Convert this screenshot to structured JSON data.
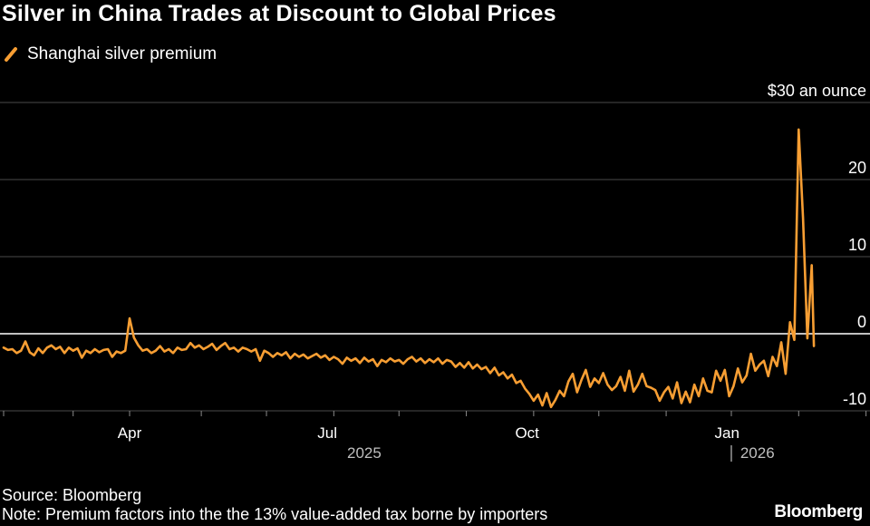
{
  "title": "Silver in China Trades at Discount to Global Prices",
  "legend_label": "Shanghai silver premium",
  "source": "Source: Bloomberg",
  "note": "Note: Premium factors into the the 13% value-added tax borne by importers",
  "brand": "Bloomberg",
  "colors": {
    "series": "#f79e33",
    "background": "#000000",
    "grid": "#4a4a4a",
    "zero": "#ffffff"
  },
  "chart_data": {
    "type": "line",
    "title": "Silver in China Trades at Discount to Global Prices",
    "unit_label": "$30 an ounce",
    "series": [
      {
        "name": "Shanghai silver premium"
      }
    ],
    "ylim": [
      -10,
      30
    ],
    "yticks": [
      {
        "value": 30,
        "label": "$30 an ounce"
      },
      {
        "value": 20,
        "label": "20"
      },
      {
        "value": 10,
        "label": "10"
      },
      {
        "value": 0,
        "label": "0"
      },
      {
        "value": -10,
        "label": "-10"
      }
    ],
    "xlim": [
      0,
      398
    ],
    "x_month_ticks": [
      0,
      32,
      58,
      91,
      121,
      152,
      182,
      213,
      244,
      274,
      305,
      335,
      366,
      397
    ],
    "x_labels": [
      {
        "x": 58,
        "label": "Apr"
      },
      {
        "x": 149,
        "label": "Jul"
      },
      {
        "x": 241,
        "label": "Oct"
      },
      {
        "x": 333,
        "label": "Jan"
      }
    ],
    "year_labels": [
      {
        "x": 166,
        "label": "2025"
      },
      {
        "x": 347,
        "label": "2026"
      }
    ],
    "year_separator_x": 335,
    "points": [
      [
        0,
        -1.8
      ],
      [
        2,
        -2.1
      ],
      [
        4,
        -2.0
      ],
      [
        6,
        -2.5
      ],
      [
        8,
        -2.2
      ],
      [
        10,
        -1.0
      ],
      [
        12,
        -2.4
      ],
      [
        14,
        -2.8
      ],
      [
        16,
        -1.9
      ],
      [
        18,
        -2.5
      ],
      [
        20,
        -1.8
      ],
      [
        22,
        -1.5
      ],
      [
        24,
        -2.0
      ],
      [
        26,
        -1.7
      ],
      [
        28,
        -2.5
      ],
      [
        30,
        -1.8
      ],
      [
        32,
        -2.2
      ],
      [
        34,
        -1.9
      ],
      [
        36,
        -3.1
      ],
      [
        38,
        -2.2
      ],
      [
        40,
        -2.5
      ],
      [
        42,
        -2.0
      ],
      [
        44,
        -2.4
      ],
      [
        46,
        -2.1
      ],
      [
        48,
        -2.0
      ],
      [
        50,
        -3.0
      ],
      [
        52,
        -2.3
      ],
      [
        54,
        -2.5
      ],
      [
        56,
        -2.2
      ],
      [
        58,
        2.0
      ],
      [
        60,
        -0.5
      ],
      [
        62,
        -1.5
      ],
      [
        64,
        -2.2
      ],
      [
        66,
        -2.0
      ],
      [
        68,
        -2.5
      ],
      [
        70,
        -2.2
      ],
      [
        72,
        -1.6
      ],
      [
        74,
        -2.3
      ],
      [
        76,
        -2.0
      ],
      [
        78,
        -2.5
      ],
      [
        80,
        -1.8
      ],
      [
        82,
        -2.1
      ],
      [
        84,
        -2.0
      ],
      [
        86,
        -1.2
      ],
      [
        88,
        -1.8
      ],
      [
        90,
        -1.5
      ],
      [
        92,
        -2.0
      ],
      [
        94,
        -1.7
      ],
      [
        96,
        -1.3
      ],
      [
        98,
        -2.1
      ],
      [
        100,
        -1.6
      ],
      [
        102,
        -1.2
      ],
      [
        104,
        -2.0
      ],
      [
        106,
        -1.8
      ],
      [
        108,
        -2.3
      ],
      [
        110,
        -1.8
      ],
      [
        112,
        -2.0
      ],
      [
        114,
        -2.3
      ],
      [
        116,
        -2.0
      ],
      [
        118,
        -3.5
      ],
      [
        120,
        -2.2
      ],
      [
        122,
        -2.5
      ],
      [
        124,
        -3.0
      ],
      [
        126,
        -2.5
      ],
      [
        128,
        -2.8
      ],
      [
        130,
        -2.4
      ],
      [
        132,
        -3.2
      ],
      [
        134,
        -2.6
      ],
      [
        136,
        -3.0
      ],
      [
        138,
        -2.7
      ],
      [
        140,
        -3.2
      ],
      [
        142,
        -2.9
      ],
      [
        144,
        -2.6
      ],
      [
        146,
        -3.1
      ],
      [
        148,
        -2.8
      ],
      [
        150,
        -3.4
      ],
      [
        152,
        -3.0
      ],
      [
        154,
        -3.3
      ],
      [
        156,
        -3.9
      ],
      [
        158,
        -3.1
      ],
      [
        160,
        -3.5
      ],
      [
        162,
        -3.2
      ],
      [
        164,
        -3.8
      ],
      [
        166,
        -3.1
      ],
      [
        168,
        -3.6
      ],
      [
        170,
        -3.3
      ],
      [
        172,
        -4.2
      ],
      [
        174,
        -3.4
      ],
      [
        176,
        -3.7
      ],
      [
        178,
        -3.2
      ],
      [
        180,
        -3.6
      ],
      [
        182,
        -3.4
      ],
      [
        184,
        -3.9
      ],
      [
        186,
        -3.3
      ],
      [
        188,
        -3.0
      ],
      [
        190,
        -3.6
      ],
      [
        192,
        -3.2
      ],
      [
        194,
        -3.8
      ],
      [
        196,
        -3.3
      ],
      [
        198,
        -3.7
      ],
      [
        200,
        -3.2
      ],
      [
        202,
        -3.9
      ],
      [
        204,
        -3.4
      ],
      [
        206,
        -3.6
      ],
      [
        208,
        -4.3
      ],
      [
        210,
        -3.8
      ],
      [
        212,
        -4.4
      ],
      [
        214,
        -3.7
      ],
      [
        216,
        -4.5
      ],
      [
        218,
        -4.0
      ],
      [
        220,
        -4.6
      ],
      [
        222,
        -4.3
      ],
      [
        224,
        -5.1
      ],
      [
        226,
        -4.4
      ],
      [
        228,
        -5.4
      ],
      [
        230,
        -5.0
      ],
      [
        232,
        -5.8
      ],
      [
        234,
        -5.3
      ],
      [
        236,
        -6.4
      ],
      [
        238,
        -6.1
      ],
      [
        240,
        -7.1
      ],
      [
        242,
        -7.8
      ],
      [
        244,
        -8.7
      ],
      [
        246,
        -7.9
      ],
      [
        248,
        -9.3
      ],
      [
        250,
        -7.7
      ],
      [
        252,
        -9.5
      ],
      [
        254,
        -8.6
      ],
      [
        256,
        -7.4
      ],
      [
        258,
        -8.1
      ],
      [
        260,
        -6.2
      ],
      [
        262,
        -5.2
      ],
      [
        264,
        -7.6
      ],
      [
        266,
        -6.0
      ],
      [
        268,
        -4.7
      ],
      [
        270,
        -6.9
      ],
      [
        272,
        -5.8
      ],
      [
        274,
        -6.4
      ],
      [
        276,
        -5.1
      ],
      [
        278,
        -6.6
      ],
      [
        280,
        -7.3
      ],
      [
        282,
        -6.8
      ],
      [
        284,
        -5.6
      ],
      [
        286,
        -7.4
      ],
      [
        288,
        -4.8
      ],
      [
        290,
        -7.5
      ],
      [
        292,
        -6.6
      ],
      [
        294,
        -5.2
      ],
      [
        296,
        -6.8
      ],
      [
        298,
        -7.0
      ],
      [
        300,
        -7.3
      ],
      [
        302,
        -8.7
      ],
      [
        304,
        -7.6
      ],
      [
        306,
        -6.9
      ],
      [
        308,
        -8.4
      ],
      [
        310,
        -6.3
      ],
      [
        312,
        -9.0
      ],
      [
        314,
        -7.5
      ],
      [
        316,
        -8.9
      ],
      [
        318,
        -6.6
      ],
      [
        320,
        -8.1
      ],
      [
        322,
        -5.8
      ],
      [
        324,
        -7.4
      ],
      [
        326,
        -7.6
      ],
      [
        328,
        -4.8
      ],
      [
        330,
        -6.1
      ],
      [
        332,
        -4.7
      ],
      [
        334,
        -8.1
      ],
      [
        336,
        -6.8
      ],
      [
        338,
        -4.5
      ],
      [
        340,
        -6.3
      ],
      [
        342,
        -5.4
      ],
      [
        344,
        -2.6
      ],
      [
        346,
        -4.8
      ],
      [
        348,
        -4.0
      ],
      [
        350,
        -3.5
      ],
      [
        352,
        -5.5
      ],
      [
        354,
        -3.0
      ],
      [
        356,
        -4.2
      ],
      [
        358,
        -1.1
      ],
      [
        360,
        -5.2
      ],
      [
        362,
        1.5
      ],
      [
        364,
        -0.8
      ],
      [
        366,
        26.5
      ],
      [
        368,
        15.0
      ],
      [
        370,
        -0.6
      ],
      [
        372,
        8.9
      ],
      [
        373,
        -1.6
      ]
    ]
  }
}
